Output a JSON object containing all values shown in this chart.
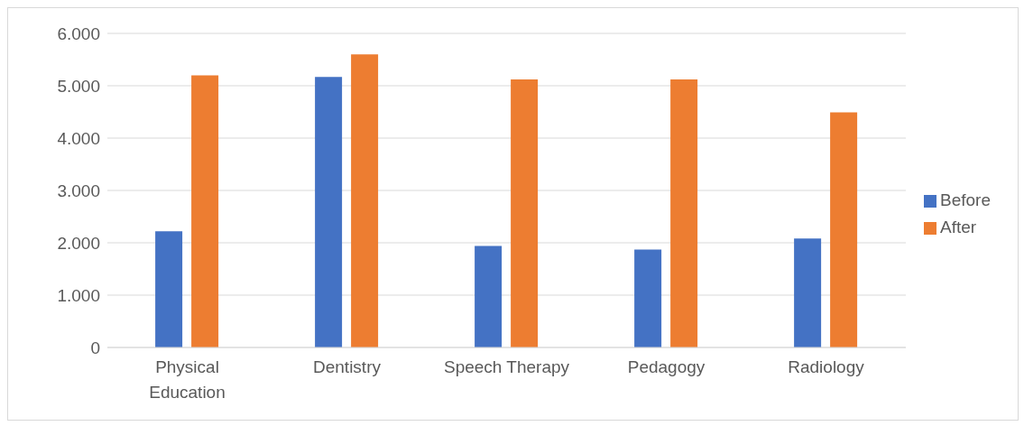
{
  "chart_data": {
    "type": "bar",
    "categories": [
      "Physical Education",
      "Dentistry",
      "Speech Therapy",
      "Pedagogy",
      "Radiology"
    ],
    "series": [
      {
        "name": "Before",
        "color": "#4472c4",
        "values": [
          2220,
          5170,
          1940,
          1870,
          2080
        ]
      },
      {
        "name": "After",
        "color": "#ed7d31",
        "values": [
          5200,
          5600,
          5120,
          5120,
          4490
        ]
      }
    ],
    "ylim": [
      0,
      6000
    ],
    "yticks": [
      {
        "value": 0,
        "label": "0"
      },
      {
        "value": 1000,
        "label": "1.000"
      },
      {
        "value": 2000,
        "label": "2.000"
      },
      {
        "value": 3000,
        "label": "3.000"
      },
      {
        "value": 4000,
        "label": "4.000"
      },
      {
        "value": 5000,
        "label": "5.000"
      },
      {
        "value": 6000,
        "label": "6.000"
      }
    ],
    "grid": "y",
    "legend": "right"
  }
}
